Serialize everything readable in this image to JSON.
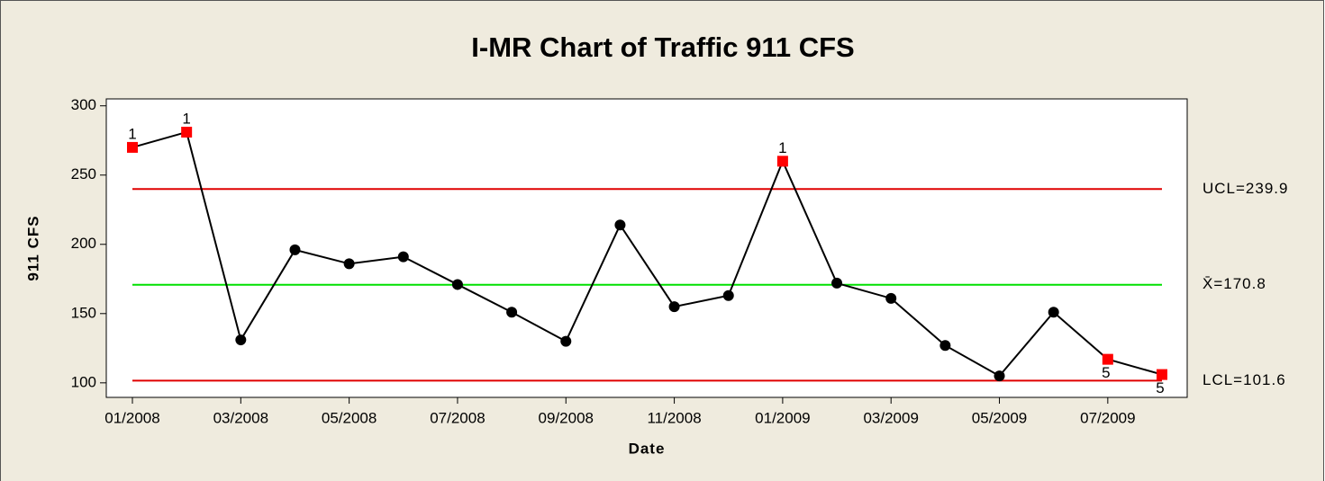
{
  "chart_data": {
    "type": "control",
    "title": "I-MR Chart of Traffic 911 CFS",
    "x_label": "Date",
    "y_label": "911 CFS",
    "categories": [
      "01/2008",
      null,
      "03/2008",
      null,
      "05/2008",
      null,
      "07/2008",
      null,
      "09/2008",
      null,
      "11/2008",
      null,
      "01/2009",
      null,
      "03/2009",
      null,
      "05/2009",
      null,
      "07/2009",
      null
    ],
    "values": [
      270,
      281,
      131,
      196,
      186,
      191,
      171,
      151,
      130,
      214,
      155,
      163,
      260,
      172,
      161,
      127,
      105,
      151,
      117,
      106
    ],
    "point_labels": [
      "1",
      "1",
      null,
      null,
      null,
      null,
      null,
      null,
      null,
      null,
      null,
      null,
      "1",
      null,
      null,
      null,
      null,
      null,
      "5",
      "5"
    ],
    "color": "#000000",
    "flag_color": "#ff0000",
    "ylim": [
      89.5,
      305
    ],
    "yticks": [
      100,
      150,
      200,
      250,
      300
    ],
    "control_lines": [
      {
        "label": "UCL=239.9",
        "value": 239.9,
        "color": "#e00000"
      },
      {
        "label": "X̄=170.8",
        "value": 170.8,
        "color": "#00e000"
      },
      {
        "label": "LCL=101.6",
        "value": 101.6,
        "color": "#e00000"
      }
    ]
  }
}
